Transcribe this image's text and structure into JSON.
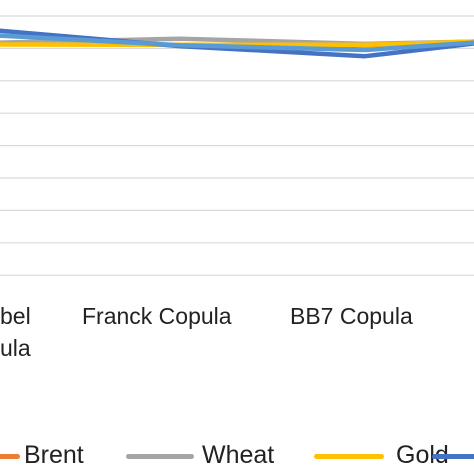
{
  "chart_data": {
    "type": "line",
    "categories": [
      "bel\nula",
      "Franck Copula",
      "BB7 Copula",
      ""
    ],
    "series": [
      {
        "name": "Brent",
        "color": "#ED7D31",
        "values": [
          null,
          0.9,
          0.9,
          0.79
        ]
      },
      {
        "name": "Wheat",
        "color": "#A5A5A5",
        "values": [
          0.85,
          0.7,
          0.86,
          0.79
        ]
      },
      {
        "name": "Gold",
        "color": "#FFC000",
        "values": [
          0.88,
          0.89,
          0.89,
          0.79
        ]
      },
      {
        "name": "",
        "color": "#4472C4",
        "values": [
          0.35,
          0.93,
          1.24,
          0.85
        ]
      },
      {
        "name": "",
        "color": "#5B9BD5",
        "values": [
          0.54,
          0.9,
          1.05,
          0.82
        ]
      }
    ],
    "legend": {
      "placement": "bottom",
      "entries": [
        "Brent",
        "Wheat",
        "Gold"
      ]
    },
    "grid": true,
    "title": "",
    "xlabel": "",
    "ylabel": ""
  }
}
